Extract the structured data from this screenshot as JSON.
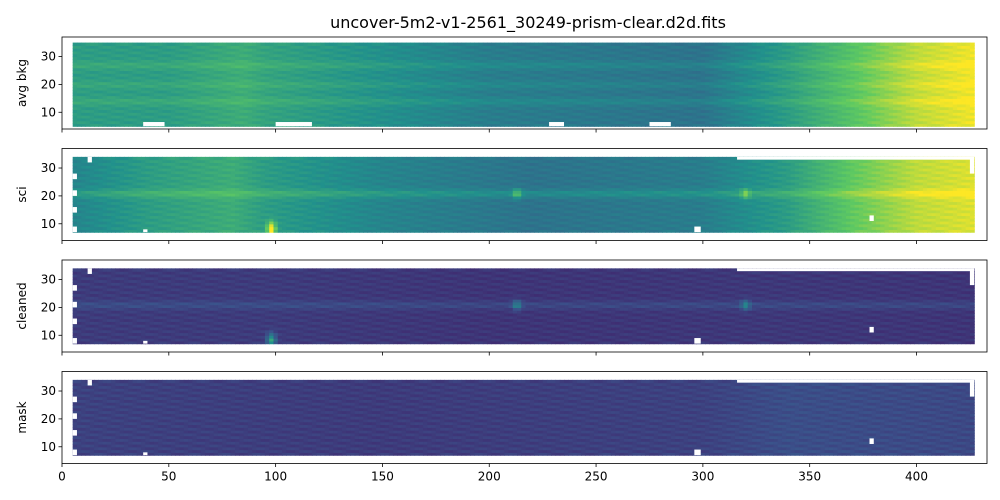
{
  "chart_data": {
    "type": "heatmap",
    "title": "uncover-5m2-v1-2561_30249-prism-clear.d2d.fits",
    "colormap": "viridis",
    "shared_x": true,
    "xlim": [
      0,
      433
    ],
    "x_ticks": [
      0,
      50,
      100,
      150,
      200,
      250,
      300,
      350,
      400
    ],
    "ylim": [
      4,
      37
    ],
    "y_ticks": [
      10,
      20,
      30
    ],
    "panels": [
      {
        "ylabel": "avg bkg",
        "x_range": [
          5,
          427
        ],
        "y_range": [
          5,
          35
        ],
        "profile": [
          [
            5,
            0.55
          ],
          [
            50,
            0.55
          ],
          [
            85,
            0.62
          ],
          [
            95,
            0.58
          ],
          [
            200,
            0.42
          ],
          [
            300,
            0.38
          ],
          [
            340,
            0.55
          ],
          [
            370,
            0.72
          ],
          [
            400,
            0.9
          ],
          [
            427,
            0.98
          ]
        ],
        "bright_rows": [
          [
            14,
            0.06
          ],
          [
            20,
            0.05
          ],
          [
            27,
            0.06
          ]
        ],
        "features": [],
        "masked_boxes": [
          [
            38,
            48,
            5,
            6.5
          ],
          [
            100,
            117,
            5,
            6.5
          ],
          [
            228,
            235,
            5,
            6.5
          ],
          [
            275,
            285,
            5,
            6.5
          ]
        ]
      },
      {
        "ylabel": "sci",
        "x_range": [
          5,
          427
        ],
        "y_range": [
          7,
          34
        ],
        "profile": [
          [
            5,
            0.45
          ],
          [
            40,
            0.55
          ],
          [
            80,
            0.62
          ],
          [
            95,
            0.55
          ],
          [
            150,
            0.45
          ],
          [
            220,
            0.38
          ],
          [
            300,
            0.42
          ],
          [
            340,
            0.55
          ],
          [
            370,
            0.75
          ],
          [
            400,
            0.9
          ],
          [
            427,
            0.95
          ]
        ],
        "bright_rows": [
          [
            21,
            0.1
          ]
        ],
        "features": [
          [
            213,
            21,
            0.25
          ],
          [
            320,
            21,
            0.25
          ],
          [
            98,
            10,
            0.2
          ],
          [
            98,
            8,
            0.5
          ]
        ],
        "masked_boxes": [
          [
            38,
            40,
            7,
            8
          ],
          [
            296,
            299,
            7,
            9
          ],
          [
            378,
            380,
            11,
            13
          ],
          [
            5,
            7,
            7,
            9
          ],
          [
            5,
            7,
            14,
            16
          ],
          [
            5,
            7,
            20,
            22
          ],
          [
            5,
            7,
            26,
            28
          ],
          [
            12,
            14,
            32,
            34
          ],
          [
            316,
            427,
            33,
            34
          ],
          [
            425,
            427,
            28,
            34
          ]
        ]
      },
      {
        "ylabel": "cleaned",
        "x_range": [
          5,
          427
        ],
        "y_range": [
          7,
          34
        ],
        "profile": [
          [
            5,
            0.18
          ],
          [
            100,
            0.18
          ],
          [
            200,
            0.16
          ],
          [
            330,
            0.17
          ],
          [
            427,
            0.16
          ]
        ],
        "bright_rows": [
          [
            21,
            0.06
          ]
        ],
        "features": [
          [
            213,
            21,
            0.25
          ],
          [
            320,
            21,
            0.25
          ],
          [
            98,
            10,
            0.15
          ],
          [
            98,
            8,
            0.35
          ]
        ],
        "masked_boxes": [
          [
            38,
            40,
            7,
            8
          ],
          [
            296,
            299,
            7,
            9
          ],
          [
            378,
            380,
            11,
            13
          ],
          [
            5,
            7,
            7,
            9
          ],
          [
            5,
            7,
            14,
            16
          ],
          [
            5,
            7,
            20,
            22
          ],
          [
            5,
            7,
            26,
            28
          ],
          [
            12,
            14,
            32,
            34
          ],
          [
            316,
            427,
            33,
            34
          ],
          [
            425,
            427,
            28,
            34
          ]
        ]
      },
      {
        "ylabel": "mask",
        "x_range": [
          5,
          427
        ],
        "y_range": [
          7,
          34
        ],
        "profile": [
          [
            5,
            0.2
          ],
          [
            150,
            0.18
          ],
          [
            300,
            0.2
          ],
          [
            340,
            0.24
          ],
          [
            427,
            0.22
          ]
        ],
        "bright_rows": [],
        "features": [],
        "masked_boxes": [
          [
            38,
            40,
            7,
            8
          ],
          [
            296,
            299,
            7,
            9
          ],
          [
            378,
            380,
            11,
            13
          ],
          [
            5,
            7,
            7,
            9
          ],
          [
            5,
            7,
            14,
            16
          ],
          [
            5,
            7,
            20,
            22
          ],
          [
            5,
            7,
            26,
            28
          ],
          [
            12,
            14,
            32,
            34
          ],
          [
            316,
            427,
            33,
            34
          ],
          [
            425,
            427,
            28,
            34
          ]
        ]
      }
    ]
  }
}
